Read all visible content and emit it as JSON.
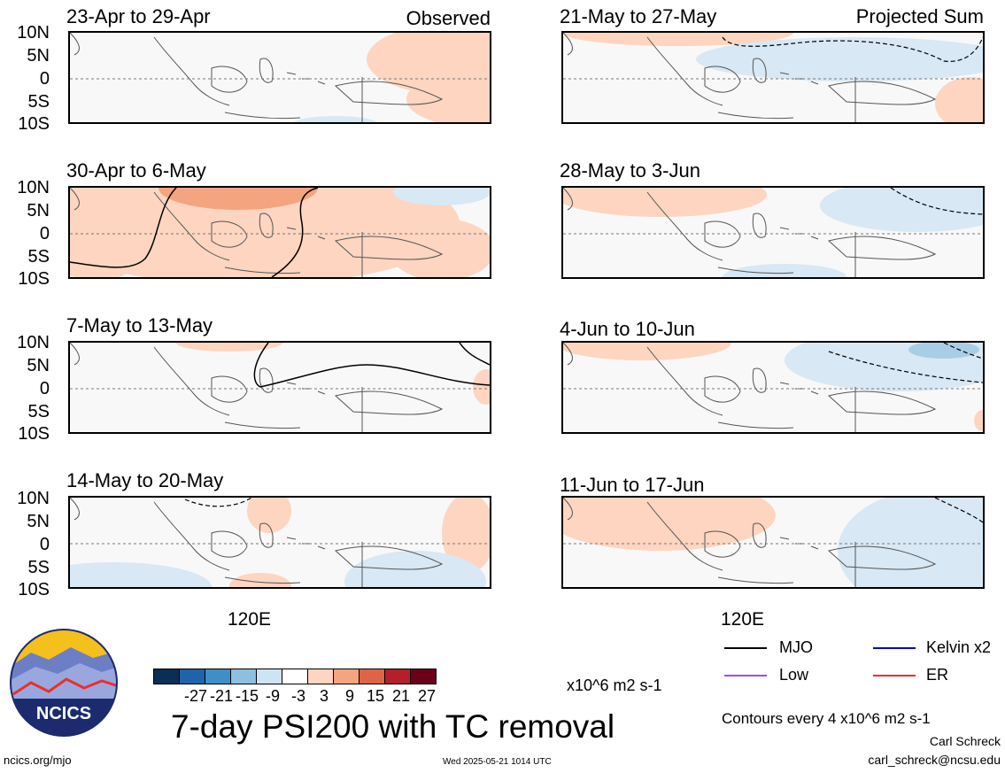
{
  "header": {
    "observed_label": "Observed",
    "projected_label": "Projected Sum"
  },
  "latitude_labels": [
    "10N",
    "5N",
    "0",
    "5S",
    "10S"
  ],
  "panels": [
    {
      "title": "23-Apr to 29-Apr"
    },
    {
      "title": "30-Apr to 6-May"
    },
    {
      "title": "7-May to 13-May"
    },
    {
      "title": "14-May to 20-May"
    },
    {
      "title": "21-May to 27-May"
    },
    {
      "title": "28-May to 3-Jun"
    },
    {
      "title": "4-Jun to 10-Jun"
    },
    {
      "title": "11-Jun to 17-Jun"
    }
  ],
  "longitude_label": "120E",
  "legend": {
    "items": [
      {
        "name": "MJO",
        "color": "#000000"
      },
      {
        "name": "Kelvin x2",
        "color": "#0000cc"
      },
      {
        "name": "Low",
        "color": "#9b4fd6"
      },
      {
        "name": "ER",
        "color": "#e8312c"
      }
    ],
    "contours_note": "Contours every 4 x10^6 m2 s-1",
    "author": "Carl Schreck",
    "email": "carl_schreck@ncsu.edu"
  },
  "colorbar": {
    "colors": [
      "#0b2e57",
      "#1f63a8",
      "#3f8fc7",
      "#8ebfe0",
      "#cfe4f3",
      "#ffffff",
      "#fdd5c0",
      "#f4a47f",
      "#de6447",
      "#b41f2c",
      "#6b0019"
    ],
    "labels": [
      "-27",
      "-21",
      "-15",
      "-9",
      "-3",
      "3",
      "9",
      "15",
      "21",
      "27"
    ],
    "units": "x10^6 m2 s-1"
  },
  "main_title": "7-day PSI200 with TC removal",
  "footer": {
    "url": "ncics.org/mjo",
    "timestamp": "Wed 2025-05-21 1014 UTC"
  },
  "logo": {
    "text": "NCICS"
  }
}
